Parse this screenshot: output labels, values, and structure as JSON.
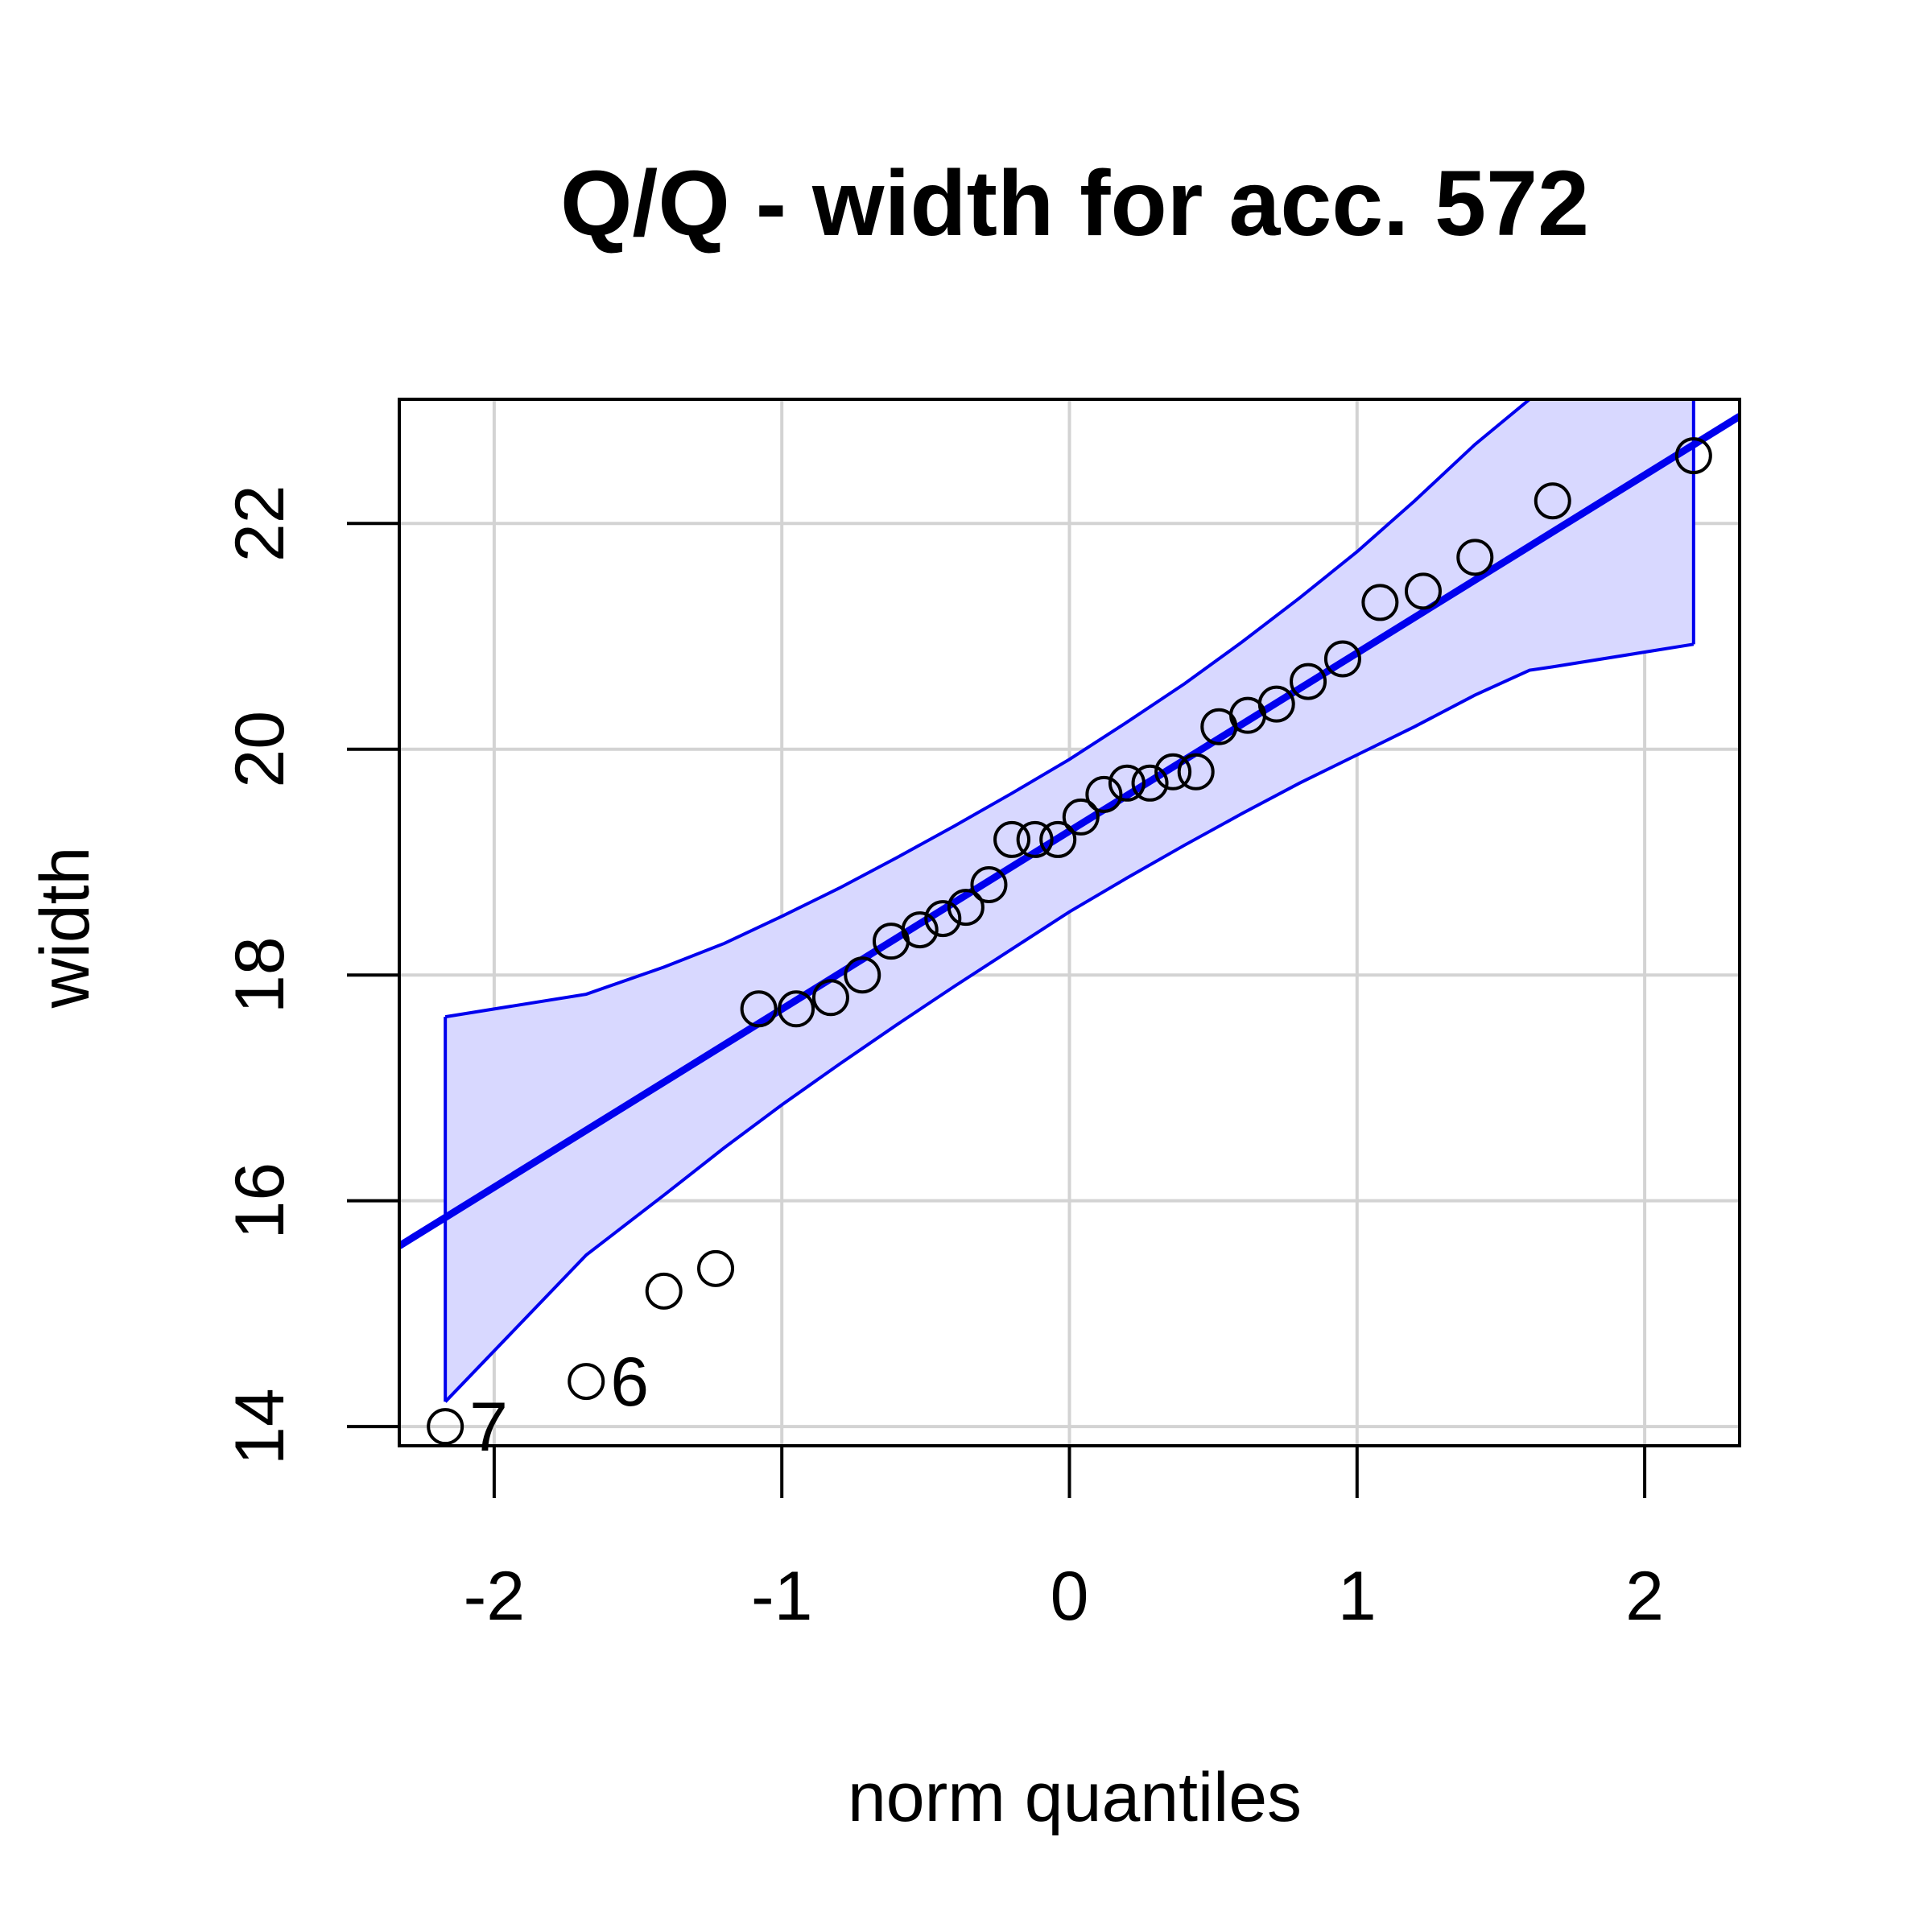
{
  "chart_data": {
    "type": "scatter",
    "title": "Q/Q - width for acc. 572",
    "xlabel": "norm quantiles",
    "ylabel": "width",
    "xlim": [
      -2.33,
      2.33
    ],
    "ylim": [
      13.83,
      23.1
    ],
    "x_ticks": [
      -2,
      -1,
      0,
      1,
      2
    ],
    "x_tick_labels": [
      "-2",
      "-1",
      "0",
      "1",
      "2"
    ],
    "y_ticks": [
      14,
      16,
      18,
      20,
      22
    ],
    "y_tick_labels": [
      "14",
      "16",
      "18",
      "20",
      "22"
    ],
    "grid": true,
    "colors": {
      "points": "#000000",
      "line": "#0000ee",
      "band_fill": "#d8d8ff",
      "band_edge": "#0000ee",
      "grid": "#d3d3d3"
    },
    "series": [
      {
        "type": "scatter",
        "x": [
          -2.17,
          -1.68,
          -1.41,
          -1.23,
          -1.08,
          -0.95,
          -0.83,
          -0.72,
          -0.62,
          -0.52,
          -0.44,
          -0.36,
          -0.28,
          -0.2,
          -0.12,
          -0.04,
          0.04,
          0.12,
          0.2,
          0.28,
          0.36,
          0.44,
          0.52,
          0.62,
          0.72,
          0.83,
          0.95,
          1.08,
          1.23,
          1.41,
          1.68,
          2.17
        ],
        "y": [
          14.0,
          14.4,
          15.2,
          15.4,
          17.7,
          17.7,
          17.8,
          18.0,
          18.3,
          18.4,
          18.5,
          18.6,
          18.8,
          19.2,
          19.2,
          19.2,
          19.4,
          19.6,
          19.7,
          19.7,
          19.8,
          19.8,
          20.2,
          20.3,
          20.4,
          20.6,
          20.8,
          21.3,
          21.4,
          21.7,
          22.2,
          22.6
        ]
      },
      {
        "type": "line",
        "x": [
          -2.33,
          2.33
        ],
        "y": [
          15.6,
          22.95
        ]
      },
      {
        "type": "band",
        "x": [
          -2.17,
          -1.68,
          -1.41,
          -1.2,
          -1.0,
          -0.8,
          -0.6,
          -0.4,
          -0.2,
          0.0,
          0.2,
          0.4,
          0.6,
          0.8,
          1.0,
          1.2,
          1.41,
          1.6,
          1.68,
          2.17
        ],
        "upper": [
          17.63,
          17.83,
          18.07,
          18.28,
          18.52,
          18.77,
          19.04,
          19.32,
          19.61,
          19.91,
          20.24,
          20.58,
          20.95,
          21.34,
          21.75,
          22.2,
          22.7,
          23.1,
          23.1,
          23.1
        ],
        "lower": [
          14.22,
          15.52,
          16.05,
          16.47,
          16.85,
          17.21,
          17.56,
          17.9,
          18.23,
          18.56,
          18.86,
          19.15,
          19.43,
          19.7,
          19.95,
          20.2,
          20.48,
          20.7,
          20.73,
          20.93
        ]
      }
    ],
    "point_labels": [
      {
        "text": "7",
        "x": -2.17,
        "y": 14.0
      },
      {
        "text": "6",
        "x": -1.68,
        "y": 14.4
      }
    ]
  }
}
